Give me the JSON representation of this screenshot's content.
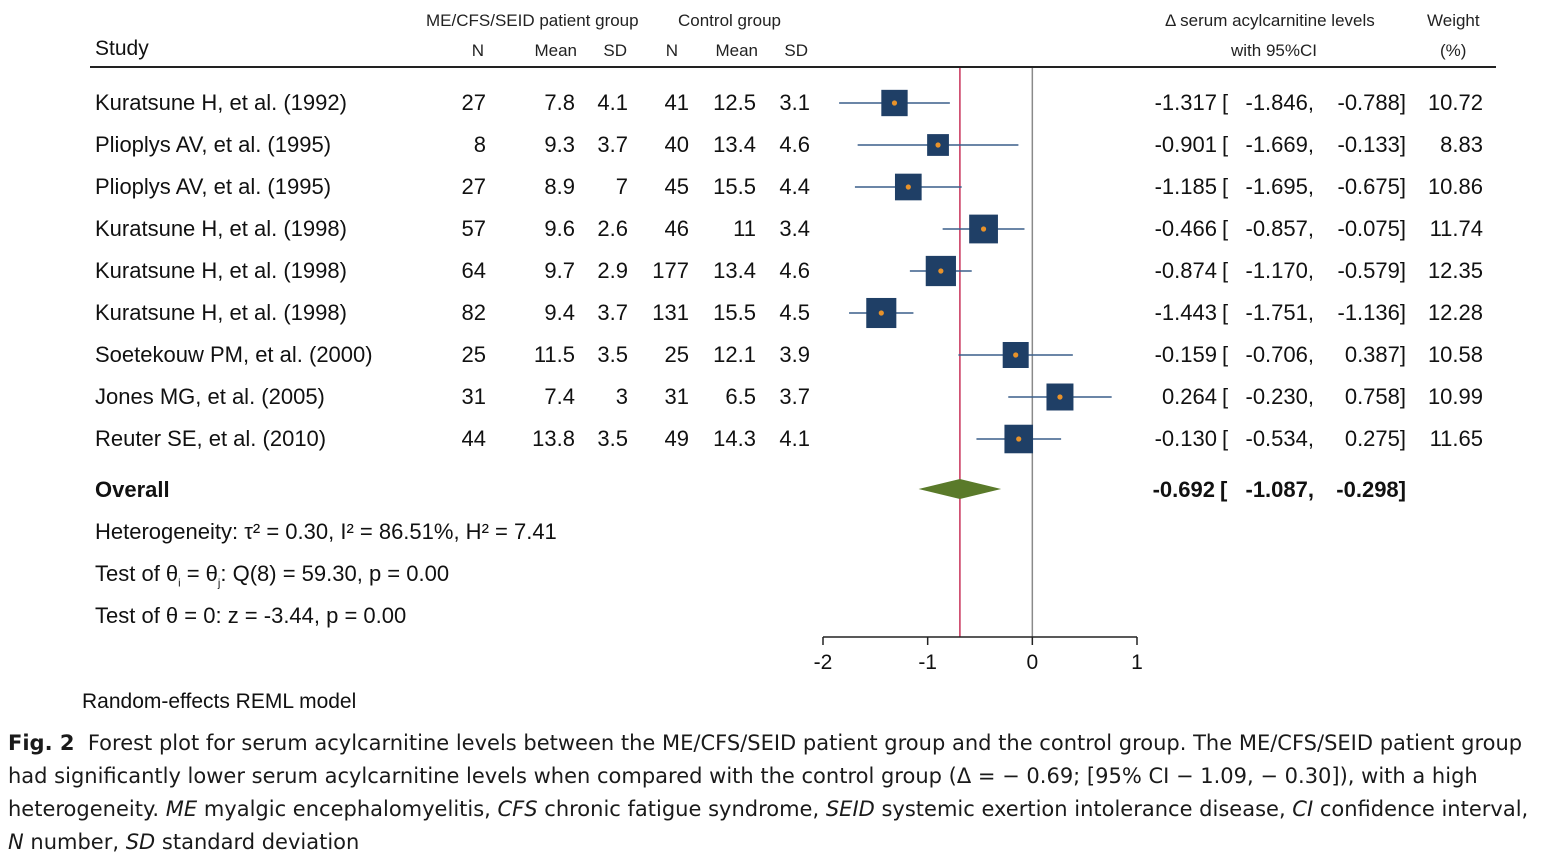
{
  "headers": {
    "study": "Study",
    "patient_group": "ME/CFS/SEID patient group",
    "control_group": "Control group",
    "n": "N",
    "mean": "Mean",
    "sd": "SD",
    "effect_line1": "Δ serum acylcarnitine levels",
    "effect_line2": "with 95%CI",
    "weight_line1": "Weight",
    "weight_line2": "(%)"
  },
  "studies": [
    {
      "name": "Kuratsune H, et al. (1992)",
      "n1": "27",
      "mean1": "7.8",
      "sd1": "4.1",
      "n2": "41",
      "mean2": "12.5",
      "sd2": "3.1",
      "est": "-1.317",
      "lo": "-1.846,",
      "hi": "-0.788]",
      "weight": "10.72"
    },
    {
      "name": "Plioplys AV, et al. (1995)",
      "n1": "8",
      "mean1": "9.3",
      "sd1": "3.7",
      "n2": "40",
      "mean2": "13.4",
      "sd2": "4.6",
      "est": "-0.901",
      "lo": "-1.669,",
      "hi": "-0.133]",
      "weight": "8.83"
    },
    {
      "name": "Plioplys AV, et al. (1995)",
      "n1": "27",
      "mean1": "8.9",
      "sd1": "7",
      "n2": "45",
      "mean2": "15.5",
      "sd2": "4.4",
      "est": "-1.185",
      "lo": "-1.695,",
      "hi": "-0.675]",
      "weight": "10.86"
    },
    {
      "name": "Kuratsune H, et al. (1998)",
      "n1": "57",
      "mean1": "9.6",
      "sd1": "2.6",
      "n2": "46",
      "mean2": "11",
      "sd2": "3.4",
      "est": "-0.466",
      "lo": "-0.857,",
      "hi": "-0.075]",
      "weight": "11.74"
    },
    {
      "name": "Kuratsune H, et al. (1998)",
      "n1": "64",
      "mean1": "9.7",
      "sd1": "2.9",
      "n2": "177",
      "mean2": "13.4",
      "sd2": "4.6",
      "est": "-0.874",
      "lo": "-1.170,",
      "hi": "-0.579]",
      "weight": "12.35"
    },
    {
      "name": "Kuratsune H, et al. (1998)",
      "n1": "82",
      "mean1": "9.4",
      "sd1": "3.7",
      "n2": "131",
      "mean2": "15.5",
      "sd2": "4.5",
      "est": "-1.443",
      "lo": "-1.751,",
      "hi": "-1.136]",
      "weight": "12.28"
    },
    {
      "name": "Soetekouw PM, et al. (2000)",
      "n1": "25",
      "mean1": "11.5",
      "sd1": "3.5",
      "n2": "25",
      "mean2": "12.1",
      "sd2": "3.9",
      "est": "-0.159",
      "lo": "-0.706,",
      "hi": "0.387]",
      "weight": "10.58"
    },
    {
      "name": "Jones MG, et al. (2005)",
      "n1": "31",
      "mean1": "7.4",
      "sd1": "3",
      "n2": "31",
      "mean2": "6.5",
      "sd2": "3.7",
      "est": "0.264",
      "lo": "-0.230,",
      "hi": "0.758]",
      "weight": "10.99"
    },
    {
      "name": "Reuter SE, et al. (2010)",
      "n1": "44",
      "mean1": "13.8",
      "sd1": "3.5",
      "n2": "49",
      "mean2": "14.3",
      "sd2": "4.1",
      "est": "-0.130",
      "lo": "-0.534,",
      "hi": "0.275]",
      "weight": "11.65"
    }
  ],
  "overall": {
    "label": "Overall",
    "est": "-0.692",
    "lo": "-1.087,",
    "hi": "-0.298]"
  },
  "stats": {
    "heterogeneity": "Heterogeneity: τ² = 0.30, I² = 86.51%, H² = 7.41",
    "test_homog_a": "Test of θ",
    "test_homog_i": "i",
    "test_homog_b": " = θ",
    "test_homog_j": "j",
    "test_homog_c": ": Q(8) = 59.30, p = 0.00",
    "test_zero": "Test of θ = 0: z = -3.44, p = 0.00"
  },
  "model_note": "Random-effects REML model",
  "caption": {
    "label": "Fig. 2",
    "text1": "Forest plot for serum acylcarnitine levels between the ME/CFS/SEID patient group and the control group. The ME/CFS/SEID patient group had significantly lower serum acylcarnitine levels when compared with the control group (Δ = − 0.69; [95% CI − 1.09, − 0.30]), with a high heterogeneity. ",
    "me": "ME",
    "me_def": " myalgic encephalomyelitis, ",
    "cfs": "CFS",
    "cfs_def": " chronic fatigue syndrome, ",
    "seid": "SEID",
    "seid_def": " systemic exertion intolerance disease, ",
    "ci": "CI",
    "ci_def": " confidence interval, ",
    "n": "N",
    "n_def": " number, ",
    "sd": "SD",
    "sd_def": " standard deviation"
  },
  "chart_data": {
    "type": "forest",
    "x_range": [
      -2,
      1
    ],
    "x_ticks": [
      "-2",
      "-1",
      "0",
      "1"
    ],
    "reference_line": 0,
    "overall_line": -0.692,
    "studies": [
      {
        "est": -1.317,
        "lo": -1.846,
        "hi": -0.788,
        "weight": 10.72
      },
      {
        "est": -0.901,
        "lo": -1.669,
        "hi": -0.133,
        "weight": 8.83
      },
      {
        "est": -1.185,
        "lo": -1.695,
        "hi": -0.675,
        "weight": 10.86
      },
      {
        "est": -0.466,
        "lo": -0.857,
        "hi": -0.075,
        "weight": 11.74
      },
      {
        "est": -0.874,
        "lo": -1.17,
        "hi": -0.579,
        "weight": 12.35
      },
      {
        "est": -1.443,
        "lo": -1.751,
        "hi": -1.136,
        "weight": 12.28
      },
      {
        "est": -0.159,
        "lo": -0.706,
        "hi": 0.387,
        "weight": 10.58
      },
      {
        "est": 0.264,
        "lo": -0.23,
        "hi": 0.758,
        "weight": 10.99
      },
      {
        "est": -0.13,
        "lo": -0.534,
        "hi": 0.275,
        "weight": 11.65
      }
    ],
    "overall": {
      "est": -0.692,
      "lo": -1.087,
      "hi": -0.298
    },
    "colors": {
      "box": "#1f3f66",
      "dot": "#e8922a",
      "ci": "#3a5f8a",
      "diamond": "#5a7a2a",
      "overall_line": "#c8325a",
      "zero_line": "#8a8a8a"
    }
  }
}
